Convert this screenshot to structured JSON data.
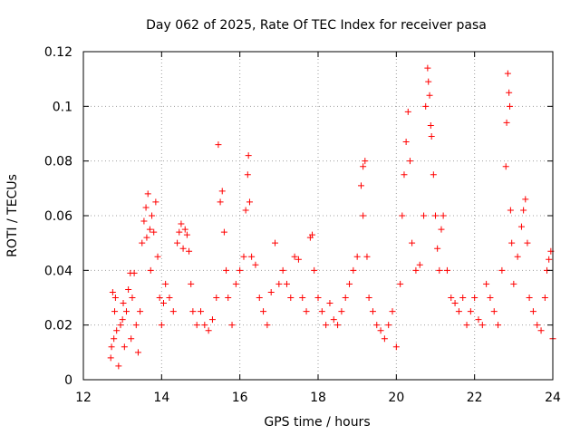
{
  "chart_data": {
    "type": "scatter",
    "title": "Day 062 of 2025, Rate Of TEC Index for receiver pasa",
    "xlabel": "GPS time / hours",
    "ylabel": "ROTI / TECUs",
    "xlim": [
      12,
      24
    ],
    "ylim": [
      0,
      0.12
    ],
    "xticks": [
      12,
      14,
      16,
      18,
      20,
      22,
      24
    ],
    "xtick_labels": [
      "12",
      "14",
      "16",
      "18",
      "20",
      "22",
      "24"
    ],
    "yticks": [
      0,
      0.02,
      0.04,
      0.06,
      0.08,
      0.1,
      0.12
    ],
    "ytick_labels": [
      "0",
      "0.02",
      "0.04",
      "0.06",
      "0.08",
      "0.1",
      "0.12"
    ],
    "grid": true,
    "marker": "+",
    "color": "#ff0000",
    "series": [
      {
        "name": "ROTI",
        "points": [
          [
            12.7,
            0.008
          ],
          [
            12.72,
            0.012
          ],
          [
            12.75,
            0.032
          ],
          [
            12.78,
            0.015
          ],
          [
            12.8,
            0.025
          ],
          [
            12.82,
            0.03
          ],
          [
            12.85,
            0.018
          ],
          [
            12.9,
            0.005
          ],
          [
            12.95,
            0.02
          ],
          [
            13.0,
            0.022
          ],
          [
            13.02,
            0.028
          ],
          [
            13.05,
            0.012
          ],
          [
            13.1,
            0.025
          ],
          [
            13.15,
            0.033
          ],
          [
            13.2,
            0.039
          ],
          [
            13.22,
            0.015
          ],
          [
            13.25,
            0.03
          ],
          [
            13.3,
            0.039
          ],
          [
            13.35,
            0.02
          ],
          [
            13.4,
            0.01
          ],
          [
            13.45,
            0.025
          ],
          [
            13.5,
            0.05
          ],
          [
            13.55,
            0.058
          ],
          [
            13.6,
            0.063
          ],
          [
            13.62,
            0.052
          ],
          [
            13.65,
            0.068
          ],
          [
            13.7,
            0.055
          ],
          [
            13.72,
            0.04
          ],
          [
            13.75,
            0.06
          ],
          [
            13.8,
            0.054
          ],
          [
            13.85,
            0.065
          ],
          [
            13.9,
            0.045
          ],
          [
            13.95,
            0.03
          ],
          [
            14.0,
            0.02
          ],
          [
            14.05,
            0.028
          ],
          [
            14.1,
            0.035
          ],
          [
            14.2,
            0.03
          ],
          [
            14.3,
            0.025
          ],
          [
            14.4,
            0.05
          ],
          [
            14.45,
            0.054
          ],
          [
            14.5,
            0.057
          ],
          [
            14.55,
            0.048
          ],
          [
            14.6,
            0.055
          ],
          [
            14.65,
            0.053
          ],
          [
            14.7,
            0.047
          ],
          [
            14.75,
            0.035
          ],
          [
            14.8,
            0.025
          ],
          [
            14.9,
            0.02
          ],
          [
            15.0,
            0.025
          ],
          [
            15.1,
            0.02
          ],
          [
            15.2,
            0.018
          ],
          [
            15.3,
            0.022
          ],
          [
            15.4,
            0.03
          ],
          [
            15.45,
            0.086
          ],
          [
            15.5,
            0.065
          ],
          [
            15.55,
            0.069
          ],
          [
            15.6,
            0.054
          ],
          [
            15.65,
            0.04
          ],
          [
            15.7,
            0.03
          ],
          [
            15.8,
            0.02
          ],
          [
            15.9,
            0.035
          ],
          [
            16.0,
            0.04
          ],
          [
            16.1,
            0.045
          ],
          [
            16.15,
            0.062
          ],
          [
            16.2,
            0.075
          ],
          [
            16.22,
            0.082
          ],
          [
            16.25,
            0.065
          ],
          [
            16.3,
            0.045
          ],
          [
            16.4,
            0.042
          ],
          [
            16.5,
            0.03
          ],
          [
            16.6,
            0.025
          ],
          [
            16.7,
            0.02
          ],
          [
            16.8,
            0.032
          ],
          [
            16.9,
            0.05
          ],
          [
            17.0,
            0.035
          ],
          [
            17.1,
            0.04
          ],
          [
            17.2,
            0.035
          ],
          [
            17.3,
            0.03
          ],
          [
            17.4,
            0.045
          ],
          [
            17.5,
            0.044
          ],
          [
            17.6,
            0.03
          ],
          [
            17.7,
            0.025
          ],
          [
            17.8,
            0.052
          ],
          [
            17.85,
            0.053
          ],
          [
            17.9,
            0.04
          ],
          [
            18.0,
            0.03
          ],
          [
            18.1,
            0.025
          ],
          [
            18.2,
            0.02
          ],
          [
            18.3,
            0.028
          ],
          [
            18.4,
            0.022
          ],
          [
            18.5,
            0.02
          ],
          [
            18.6,
            0.025
          ],
          [
            18.7,
            0.03
          ],
          [
            18.8,
            0.035
          ],
          [
            18.9,
            0.04
          ],
          [
            19.0,
            0.045
          ],
          [
            19.1,
            0.071
          ],
          [
            19.15,
            0.078
          ],
          [
            19.2,
            0.08
          ],
          [
            19.15,
            0.06
          ],
          [
            19.25,
            0.045
          ],
          [
            19.3,
            0.03
          ],
          [
            19.4,
            0.025
          ],
          [
            19.5,
            0.02
          ],
          [
            19.6,
            0.018
          ],
          [
            19.7,
            0.015
          ],
          [
            19.8,
            0.02
          ],
          [
            19.9,
            0.025
          ],
          [
            20.0,
            0.012
          ],
          [
            20.1,
            0.035
          ],
          [
            20.15,
            0.06
          ],
          [
            20.2,
            0.075
          ],
          [
            20.25,
            0.087
          ],
          [
            20.3,
            0.098
          ],
          [
            20.35,
            0.08
          ],
          [
            20.4,
            0.05
          ],
          [
            20.5,
            0.04
          ],
          [
            20.6,
            0.042
          ],
          [
            20.7,
            0.06
          ],
          [
            20.75,
            0.1
          ],
          [
            20.8,
            0.114
          ],
          [
            20.82,
            0.109
          ],
          [
            20.85,
            0.104
          ],
          [
            20.88,
            0.093
          ],
          [
            20.9,
            0.089
          ],
          [
            20.95,
            0.075
          ],
          [
            21.0,
            0.06
          ],
          [
            21.05,
            0.048
          ],
          [
            21.1,
            0.04
          ],
          [
            21.15,
            0.055
          ],
          [
            21.2,
            0.06
          ],
          [
            21.3,
            0.04
          ],
          [
            21.4,
            0.03
          ],
          [
            21.5,
            0.028
          ],
          [
            21.6,
            0.025
          ],
          [
            21.7,
            0.03
          ],
          [
            21.8,
            0.02
          ],
          [
            21.9,
            0.025
          ],
          [
            22.0,
            0.03
          ],
          [
            22.1,
            0.022
          ],
          [
            22.2,
            0.02
          ],
          [
            22.3,
            0.035
          ],
          [
            22.4,
            0.03
          ],
          [
            22.5,
            0.025
          ],
          [
            22.6,
            0.02
          ],
          [
            22.7,
            0.04
          ],
          [
            22.8,
            0.078
          ],
          [
            22.82,
            0.094
          ],
          [
            22.85,
            0.112
          ],
          [
            22.88,
            0.105
          ],
          [
            22.9,
            0.1
          ],
          [
            22.92,
            0.062
          ],
          [
            22.95,
            0.05
          ],
          [
            23.0,
            0.035
          ],
          [
            23.1,
            0.045
          ],
          [
            23.2,
            0.056
          ],
          [
            23.25,
            0.062
          ],
          [
            23.3,
            0.066
          ],
          [
            23.35,
            0.05
          ],
          [
            23.4,
            0.03
          ],
          [
            23.5,
            0.025
          ],
          [
            23.6,
            0.02
          ],
          [
            23.7,
            0.018
          ],
          [
            23.8,
            0.03
          ],
          [
            23.85,
            0.04
          ],
          [
            23.9,
            0.044
          ],
          [
            23.95,
            0.047
          ],
          [
            24.0,
            0.015
          ]
        ]
      }
    ]
  }
}
